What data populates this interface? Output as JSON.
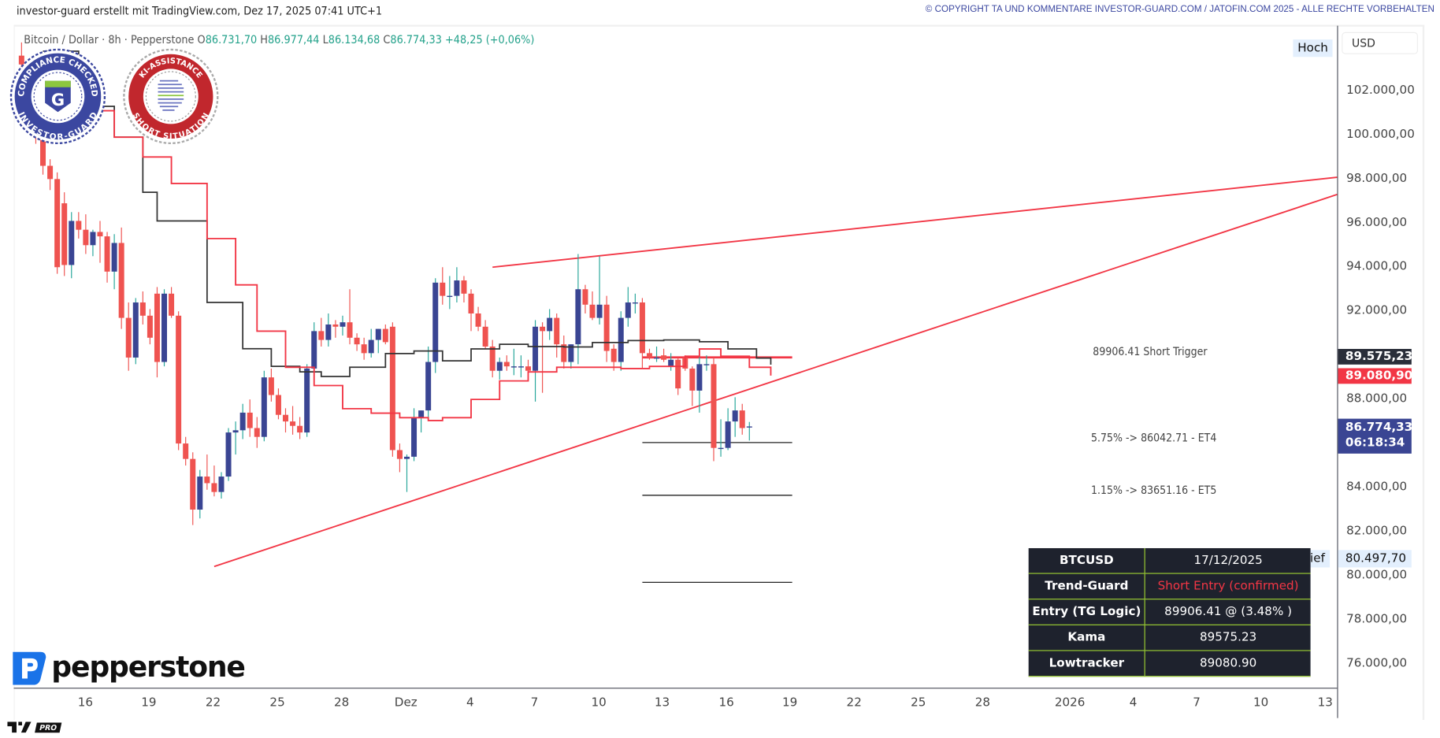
{
  "header": {
    "attribution": "investor-guard erstellt mit TradingView.com, Dez 17, 2025 07:41 UTC+1",
    "copyright": "© COPYRIGHT TA UND KOMMENTARE INVESTOR-GUARD.COM / JATOFIN.COM 2025 - ALLE RECHTE VORBEHALTEN"
  },
  "legend": {
    "symbol": "Bitcoin / Dollar · 8h · Pepperstone",
    "o_label": "O",
    "open": "86.731,70",
    "h_label": "H",
    "high": "86.977,44",
    "l_label": "L",
    "low": "86.134,68",
    "c_label": "C",
    "close": "86.774,33",
    "change": "+48,25 (+0,06%)"
  },
  "badges": {
    "compliance": {
      "top": "COMPLIANCE CHECKED",
      "bottom": "INVESTOR-GUARD",
      "letter": "G"
    },
    "ki": {
      "top": "KI-ASSISTANCE",
      "bottom": "SHORT SITUATION"
    }
  },
  "price_axis": {
    "currency": "USD",
    "ticks": [
      "102.000,00",
      "100.000,00",
      "98.000,00",
      "96.000,00",
      "94.000,00",
      "92.000,00",
      "88.000,00",
      "84.000,00",
      "82.000,00",
      "80.000,00",
      "78.000,00",
      "76.000,00"
    ],
    "tick_values": [
      102000,
      100000,
      98000,
      96000,
      94000,
      92000,
      88000,
      84000,
      82000,
      80000,
      78000,
      76000
    ],
    "high_label": "Hoch",
    "low_label": "Tief",
    "low_value": "80.497,70",
    "kama_tag": "89.575,23",
    "lowtracker_tag": "89.080,90",
    "last_price_tag": "86.774,33",
    "countdown": "06:18:34"
  },
  "time_axis": {
    "labels": [
      "16",
      "19",
      "22",
      "25",
      "28",
      "Dez",
      "4",
      "7",
      "10",
      "13",
      "16",
      "19",
      "22",
      "25",
      "28",
      "2026",
      "4",
      "7",
      "10",
      "13"
    ]
  },
  "annotations": {
    "short_trigger": {
      "text": "89906.41  Short Trigger",
      "price": 89906.41
    },
    "et4": {
      "text": "5.75% -> 86042.71 - ET4",
      "price": 86042.71
    },
    "et5": {
      "text": "1.15% -> 83651.16 - ET5",
      "price": 83651.16
    }
  },
  "info_table": {
    "rows": [
      {
        "label": "BTCUSD",
        "value": "17/12/2025"
      },
      {
        "label": "Trend-Guard",
        "value": "Short Entry (confirmed)"
      },
      {
        "label": "Entry (TG Logic)",
        "value": "89906.41 @ (3.48% )"
      },
      {
        "label": "Kama",
        "value": "89575.23"
      },
      {
        "label": "Lowtracker",
        "value": "89080.90"
      }
    ]
  },
  "logos": {
    "broker": "pepperstone",
    "platform": "PRO"
  },
  "colors": {
    "up": "#3a4593",
    "down": "#ef5350",
    "wick_up": "#26a69a",
    "lowtracker": "#f23645",
    "kama": "#333333",
    "trendline": "#f23645",
    "signal_text": "#f23645",
    "table_border": "#9acd32",
    "table_bg": "#1e222d"
  },
  "chart_data": {
    "type": "candlestick",
    "symbol": "BTCUSD",
    "interval": "8h",
    "last_bar": "Dez 17",
    "ylim": [
      75000,
      105000
    ],
    "candles": [
      [
        103600,
        104200,
        102800,
        103200
      ],
      [
        103200,
        103400,
        100600,
        101000
      ],
      [
        101000,
        101400,
        99600,
        99900
      ],
      [
        99900,
        100300,
        98200,
        98600
      ],
      [
        98600,
        98900,
        97500,
        98000
      ],
      [
        98000,
        98300,
        93700,
        94000
      ],
      [
        96900,
        97400,
        93600,
        94100
      ],
      [
        94100,
        96500,
        93500,
        96100
      ],
      [
        96100,
        96500,
        95300,
        95700
      ],
      [
        95700,
        96400,
        94600,
        95000
      ],
      [
        95000,
        95700,
        94500,
        95600
      ],
      [
        95600,
        96100,
        94200,
        95400
      ],
      [
        95400,
        95600,
        93300,
        93800
      ],
      [
        93800,
        95500,
        93000,
        95100
      ],
      [
        95100,
        95800,
        91200,
        91700
      ],
      [
        91700,
        92400,
        89300,
        89900
      ],
      [
        89900,
        92600,
        89600,
        92400
      ],
      [
        92400,
        92900,
        91400,
        91800
      ],
      [
        91800,
        92100,
        90500,
        90800
      ],
      [
        92800,
        93100,
        89000,
        89700
      ],
      [
        89700,
        93000,
        89500,
        92800
      ],
      [
        92800,
        93100,
        91700,
        91800
      ],
      [
        91800,
        92000,
        85700,
        86000
      ],
      [
        86000,
        86300,
        85000,
        85300
      ],
      [
        85300,
        85600,
        82300,
        83000
      ],
      [
        83000,
        84800,
        82600,
        84500
      ],
      [
        84500,
        85500,
        83900,
        84200
      ],
      [
        84200,
        85000,
        83600,
        83800
      ],
      [
        83800,
        84700,
        83500,
        84500
      ],
      [
        84500,
        86700,
        84300,
        86500
      ],
      [
        86500,
        87000,
        85500,
        86600
      ],
      [
        86600,
        87800,
        86200,
        87400
      ],
      [
        87400,
        88000,
        86300,
        86700
      ],
      [
        86700,
        87200,
        85800,
        86300
      ],
      [
        86300,
        89300,
        86100,
        89000
      ],
      [
        89000,
        89400,
        87900,
        88200
      ],
      [
        88200,
        88500,
        87100,
        87300
      ],
      [
        87300,
        87600,
        86500,
        87000
      ],
      [
        87000,
        87700,
        86400,
        86800
      ],
      [
        86800,
        87200,
        86200,
        86500
      ],
      [
        86500,
        89600,
        86300,
        89400
      ],
      [
        89400,
        91500,
        89000,
        91100
      ],
      [
        91100,
        91700,
        90400,
        90700
      ],
      [
        90700,
        91900,
        90400,
        91400
      ],
      [
        91400,
        91600,
        90800,
        91300
      ],
      [
        91300,
        91800,
        90900,
        91500
      ],
      [
        91500,
        93000,
        90500,
        90800
      ],
      [
        90800,
        91000,
        90200,
        90500
      ],
      [
        90500,
        90800,
        89800,
        90100
      ],
      [
        90100,
        91200,
        89900,
        90700
      ],
      [
        90700,
        91200,
        90100,
        91200
      ],
      [
        91200,
        91400,
        90500,
        90600
      ],
      [
        91300,
        91500,
        85400,
        85700
      ],
      [
        85700,
        86000,
        84700,
        85300
      ],
      [
        85300,
        85500,
        83800,
        85400
      ],
      [
        85400,
        87600,
        85200,
        87200
      ],
      [
        87200,
        87500,
        86500,
        87500
      ],
      [
        87500,
        90400,
        87100,
        89700
      ],
      [
        89700,
        93500,
        89200,
        93300
      ],
      [
        93300,
        94000,
        92300,
        92700
      ],
      [
        92700,
        93600,
        92100,
        92700
      ],
      [
        92700,
        94000,
        92400,
        93400
      ],
      [
        93400,
        93600,
        92400,
        92800
      ],
      [
        92800,
        93000,
        91100,
        91900
      ],
      [
        91900,
        92200,
        91100,
        91300
      ],
      [
        91300,
        91600,
        90300,
        90400
      ],
      [
        90400,
        90700,
        89000,
        89300
      ],
      [
        89300,
        89900,
        88900,
        89700
      ],
      [
        89700,
        90000,
        89300,
        89500
      ],
      [
        89500,
        90300,
        89100,
        89500
      ],
      [
        89500,
        90000,
        89000,
        89500
      ],
      [
        89500,
        89800,
        89200,
        89300
      ],
      [
        89300,
        91600,
        87900,
        91300
      ],
      [
        91300,
        91500,
        88300,
        91100
      ],
      [
        91100,
        92100,
        90700,
        91700
      ],
      [
        91700,
        91900,
        89900,
        90500
      ],
      [
        90500,
        90900,
        89400,
        89700
      ],
      [
        89700,
        90500,
        89400,
        90500
      ],
      [
        90500,
        94600,
        89600,
        93000
      ],
      [
        93000,
        93200,
        91900,
        92300
      ],
      [
        92300,
        92900,
        91600,
        91700
      ],
      [
        91700,
        94500,
        91400,
        92300
      ],
      [
        92300,
        92700,
        89700,
        90200
      ],
      [
        90300,
        90500,
        89300,
        89700
      ],
      [
        89700,
        92000,
        89300,
        91700
      ],
      [
        91700,
        93100,
        91300,
        92400
      ],
      [
        92400,
        92800,
        91900,
        92400
      ],
      [
        92400,
        92600,
        89400,
        90100
      ],
      [
        90100,
        90300,
        89800,
        89900
      ],
      [
        89900,
        90400,
        89700,
        89900
      ],
      [
        90000,
        90300,
        89700,
        89800
      ],
      [
        89500,
        90100,
        89300,
        89800
      ],
      [
        89800,
        89900,
        88200,
        88500
      ],
      [
        89900,
        90000,
        89300,
        89400
      ],
      [
        89400,
        89500,
        87700,
        88400
      ],
      [
        88400,
        90100,
        87400,
        89600
      ],
      [
        89600,
        90000,
        89300,
        89600
      ],
      [
        89600,
        89900,
        85200,
        85800
      ],
      [
        85800,
        87100,
        85400,
        85800
      ],
      [
        85800,
        87600,
        85700,
        87000
      ],
      [
        87000,
        88100,
        86300,
        87500
      ],
      [
        87500,
        87800,
        86400,
        86700
      ],
      [
        86731.7,
        86977.44,
        86134.68,
        86774.33
      ]
    ],
    "kama": [
      [
        3,
        103800
      ],
      [
        8,
        101300
      ],
      [
        13,
        99900
      ],
      [
        17,
        97400
      ],
      [
        19,
        96100
      ],
      [
        26,
        92400
      ],
      [
        31,
        90300
      ],
      [
        35,
        89500
      ],
      [
        39,
        89250
      ],
      [
        42,
        89040
      ],
      [
        46,
        89460
      ],
      [
        51,
        90080
      ],
      [
        55,
        90200
      ],
      [
        59,
        89750
      ],
      [
        63,
        90290
      ],
      [
        67,
        90500
      ],
      [
        71,
        90400
      ],
      [
        76,
        90380
      ],
      [
        80,
        90580
      ],
      [
        85,
        90670
      ],
      [
        90,
        90700
      ],
      [
        95,
        90620
      ],
      [
        99,
        90290
      ],
      [
        103,
        89875
      ],
      [
        105,
        89575.23
      ]
    ],
    "lowtracker": [
      [
        3,
        103600
      ],
      [
        8,
        101100
      ],
      [
        13,
        99900
      ],
      [
        17,
        99000
      ],
      [
        21,
        97800
      ],
      [
        26,
        95300
      ],
      [
        30,
        93200
      ],
      [
        33,
        91100
      ],
      [
        37,
        89460
      ],
      [
        41,
        88630
      ],
      [
        45,
        87580
      ],
      [
        49,
        87375
      ],
      [
        53,
        87170
      ],
      [
        57,
        87040
      ],
      [
        59,
        87170
      ],
      [
        63,
        88000
      ],
      [
        67,
        88840
      ],
      [
        71,
        89250
      ],
      [
        75,
        89460
      ],
      [
        78,
        89460
      ],
      [
        84,
        89400
      ],
      [
        88,
        89500
      ],
      [
        93,
        89960
      ],
      [
        95,
        90290
      ],
      [
        98,
        89960
      ],
      [
        102,
        89460
      ],
      [
        105,
        89080.9
      ]
    ],
    "trendlines": [
      {
        "from": [
          27,
          80420
        ],
        "to": [
          187,
          97300
        ]
      },
      {
        "from": [
          66,
          94000
        ],
        "to": [
          187,
          98080
        ]
      }
    ],
    "levels": [
      {
        "price": 89906.41,
        "from_bar": 87,
        "to_bar": 108,
        "color": "#f23645"
      },
      {
        "price": 86042.71,
        "from_bar": 87,
        "to_bar": 108,
        "color": "#222222"
      },
      {
        "price": 83651.16,
        "from_bar": 87,
        "to_bar": 108,
        "color": "#222222"
      },
      {
        "price": 79700,
        "from_bar": 87,
        "to_bar": 108,
        "color": "#222222"
      }
    ]
  }
}
